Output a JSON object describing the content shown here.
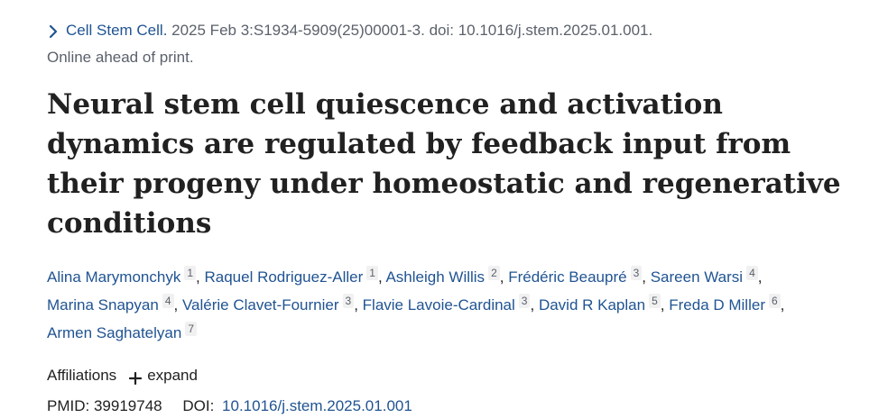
{
  "citation": {
    "journal": "Cell Stem Cell.",
    "rest": " 2025 Feb 3:S1934-5909(25)00001-3. doi: 10.1016/j.stem.2025.01.001.",
    "status": "Online ahead of print."
  },
  "title": "Neural stem cell quiescence and activation dynamics are regulated by feedback input from their progeny under homeostatic and regenerative conditions",
  "authors": [
    {
      "name": "Alina Marymonchyk",
      "aff": "1"
    },
    {
      "name": "Raquel Rodriguez-Aller",
      "aff": "1"
    },
    {
      "name": "Ashleigh Willis",
      "aff": "2"
    },
    {
      "name": "Frédéric Beaupré",
      "aff": "3"
    },
    {
      "name": "Sareen Warsi",
      "aff": "4"
    },
    {
      "name": "Marina Snapyan",
      "aff": "4"
    },
    {
      "name": "Valérie Clavet-Fournier",
      "aff": "3"
    },
    {
      "name": "Flavie Lavoie-Cardinal",
      "aff": "3"
    },
    {
      "name": "David R Kaplan",
      "aff": "5"
    },
    {
      "name": "Freda D Miller",
      "aff": "6"
    },
    {
      "name": "Armen Saghatelyan",
      "aff": "7"
    }
  ],
  "affiliations": {
    "label": "Affiliations",
    "expand_label": "expand",
    "icon": "plus-icon"
  },
  "ids": {
    "pmid_label": "PMID:",
    "pmid": "39919748",
    "doi_label": "DOI:",
    "doi": "10.1016/j.stem.2025.01.001"
  },
  "colors": {
    "link": "#205493",
    "text": "#212121",
    "muted": "#5b616b"
  }
}
